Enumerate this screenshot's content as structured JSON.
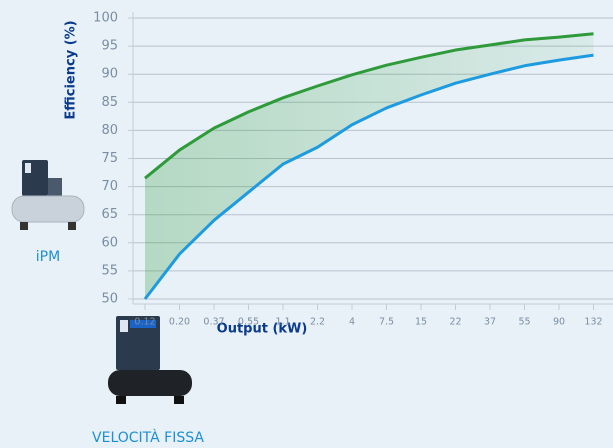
{
  "chart_data": {
    "type": "line",
    "y_label": "Efficiency (%)",
    "x_label": "Output (kW)",
    "categories": [
      "0.12",
      "0.20",
      "0.37",
      "0.55",
      "1.1",
      "2.2",
      "4",
      "7.5",
      "15",
      "22",
      "37",
      "55",
      "90",
      "132"
    ],
    "series": [
      {
        "name": "iPM",
        "color": "#2f9a3a",
        "values": [
          71.5,
          76.5,
          80.4,
          83.3,
          85.8,
          87.9,
          89.9,
          91.6,
          93,
          94.3,
          95.2,
          96.1,
          96.6,
          97.2
        ]
      },
      {
        "name": "VELOCITÀ FISSA",
        "color": "#1e9be0",
        "values": [
          50,
          58,
          64,
          69,
          74,
          77,
          81,
          84,
          86.3,
          88.4,
          90,
          91.5,
          92.5,
          93.4
        ]
      }
    ],
    "ylim": [
      50,
      100
    ],
    "yticks": [
      50,
      55,
      60,
      65,
      70,
      75,
      80,
      85,
      90,
      95,
      100
    ],
    "grid": true,
    "fill_between": true
  }
}
